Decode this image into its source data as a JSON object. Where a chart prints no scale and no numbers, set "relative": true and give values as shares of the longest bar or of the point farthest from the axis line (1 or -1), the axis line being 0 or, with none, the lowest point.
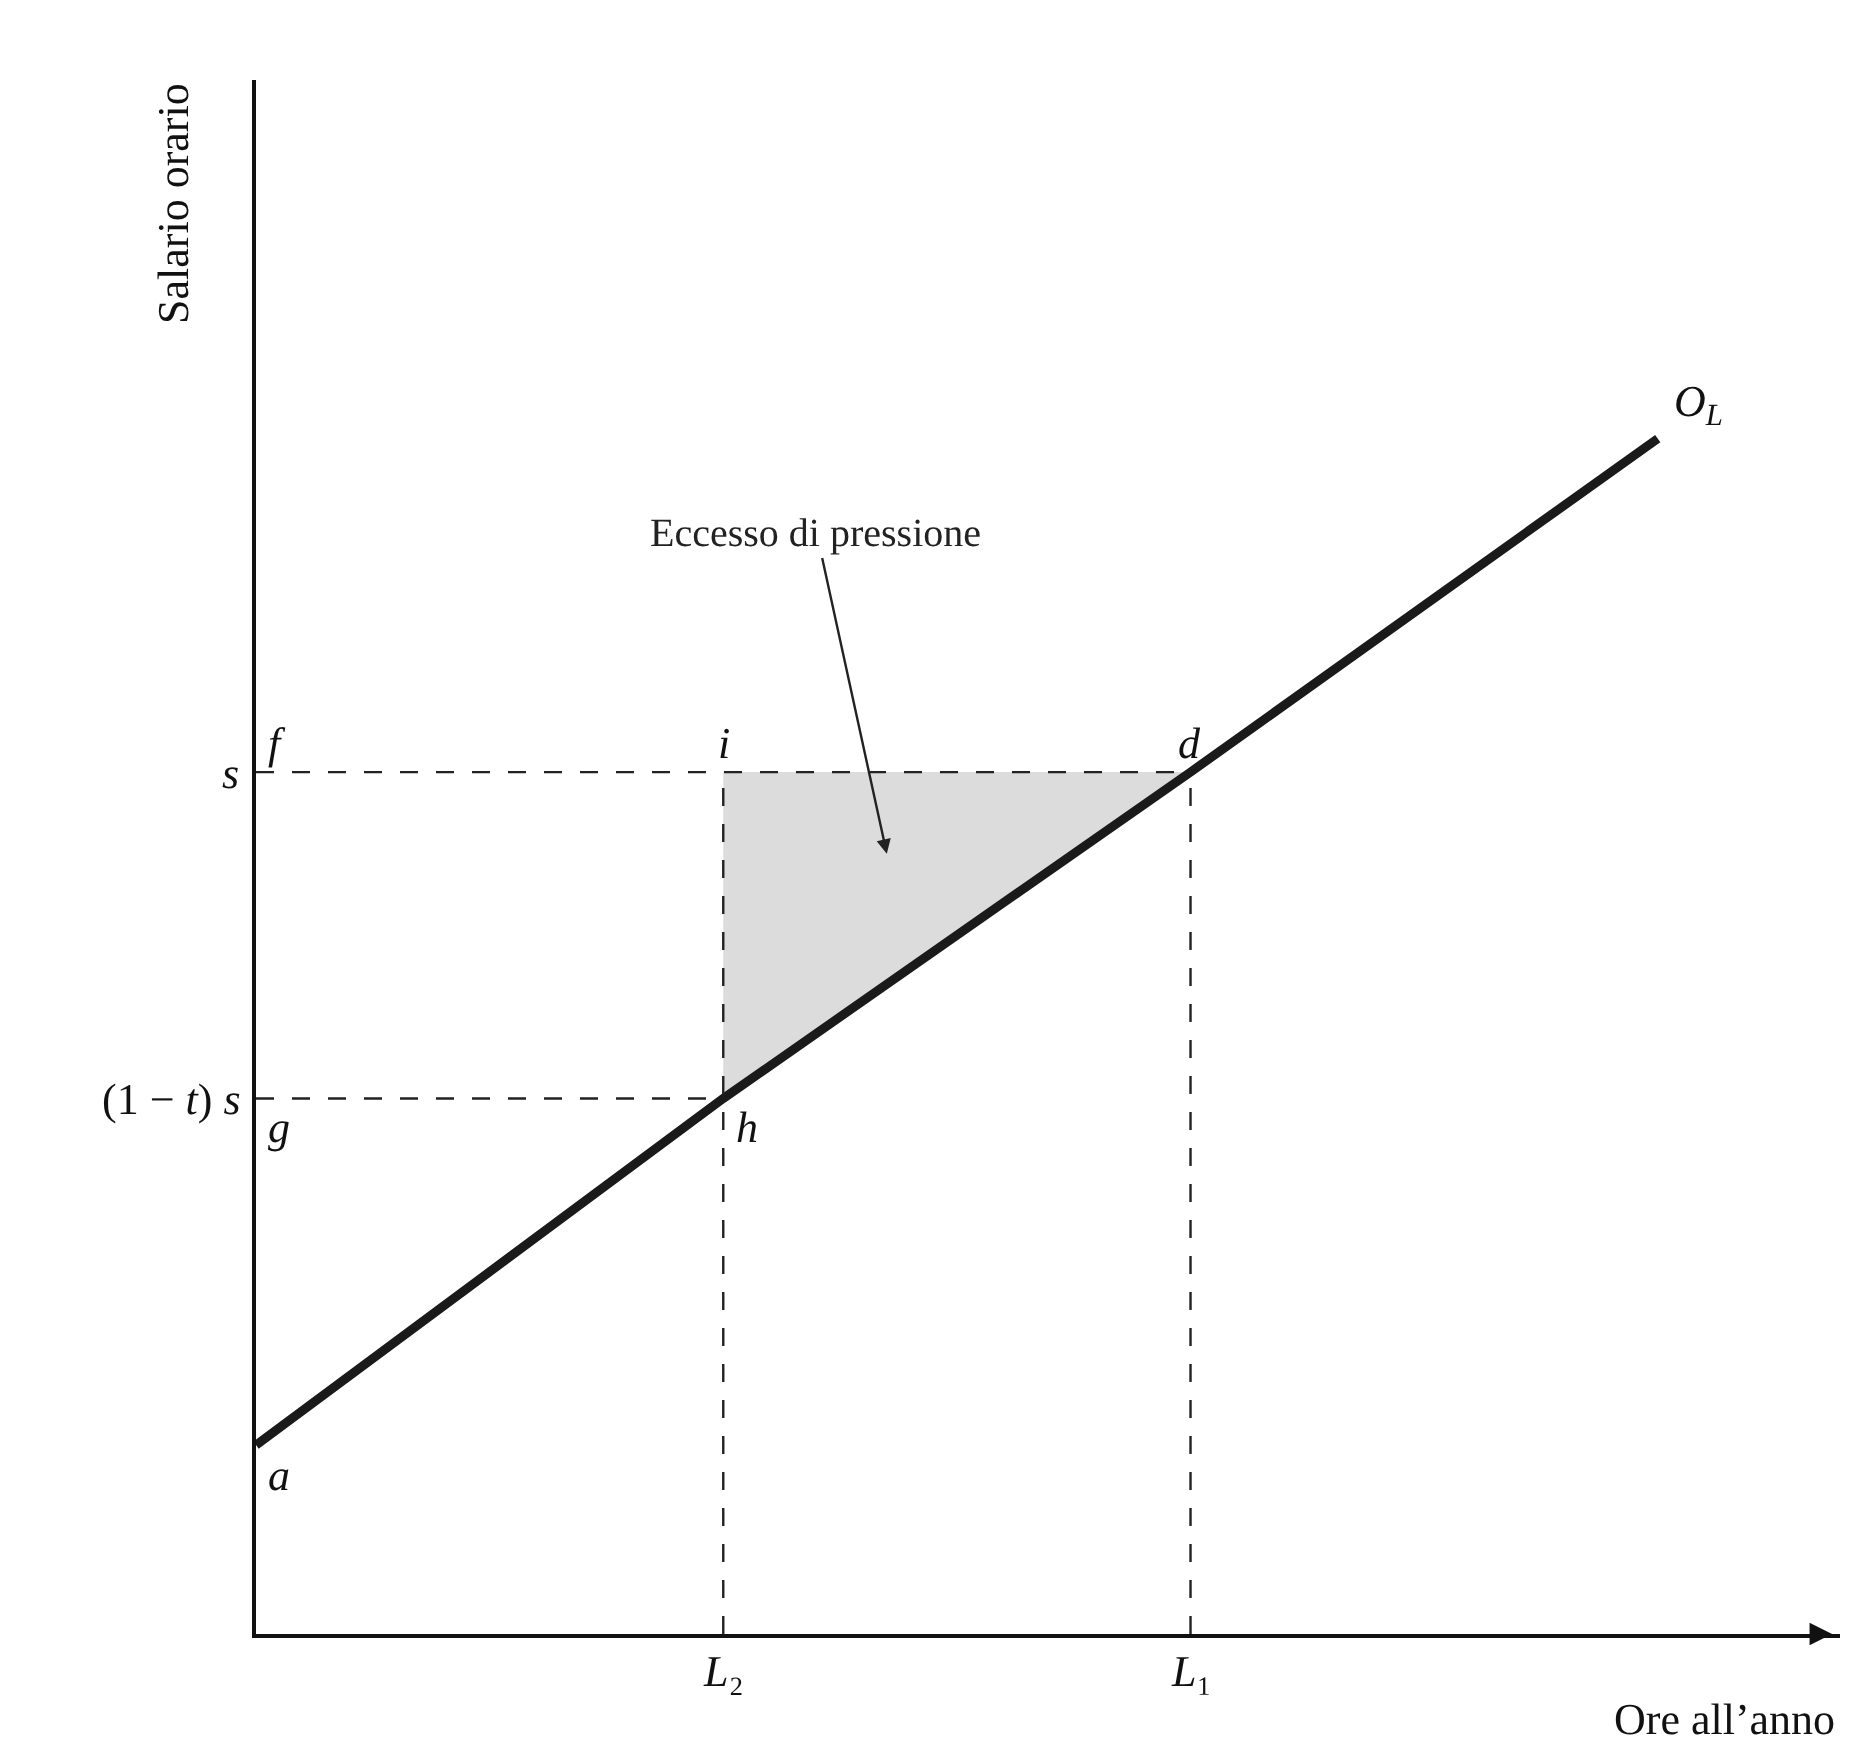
{
  "chart_data": {
    "type": "line",
    "relative": true,
    "xlabel": "Ore all’anno",
    "ylabel": "Salario orario",
    "categories": [
      null,
      "L₂",
      "L₁",
      null
    ],
    "series": [
      {
        "type": "area",
        "color": "#dcdcdc",
        "values": [
          null,
          0.721,
          0.721,
          null
        ]
      },
      {
        "name": "O$_{L}$",
        "color": "#1a1a1a",
        "values": [
          0.158,
          0.448,
          0.721,
          1
        ]
      }
    ],
    "ref_lines": [
      {
        "axis": "y",
        "value": 0.721,
        "label": "s",
        "line_style": "dashed"
      },
      {
        "axis": "y",
        "value": 0.448,
        "label": "(1 − t) s",
        "line_style": "dashed"
      },
      {
        "axis": "x",
        "value": "L₂",
        "label": "L₂",
        "line_style": "dashed"
      },
      {
        "axis": "x",
        "value": "L₁",
        "label": "L₁",
        "line_style": "dashed"
      }
    ],
    "annotations": [
      {
        "text": "f",
        "y": 0.721
      },
      {
        "text": "i",
        "x": "L₂",
        "y": 0.721
      },
      {
        "text": "d",
        "x": "L₁",
        "y": 0.721
      },
      {
        "text": "g",
        "y": 0.448
      },
      {
        "text": "h",
        "x": "L₂",
        "y": 0.448
      },
      {
        "text": "a",
        "y": 0.158
      },
      "Eccesso di pressione"
    ],
    "legend": false,
    "marker": "none",
    "line_style": "solid"
  }
}
